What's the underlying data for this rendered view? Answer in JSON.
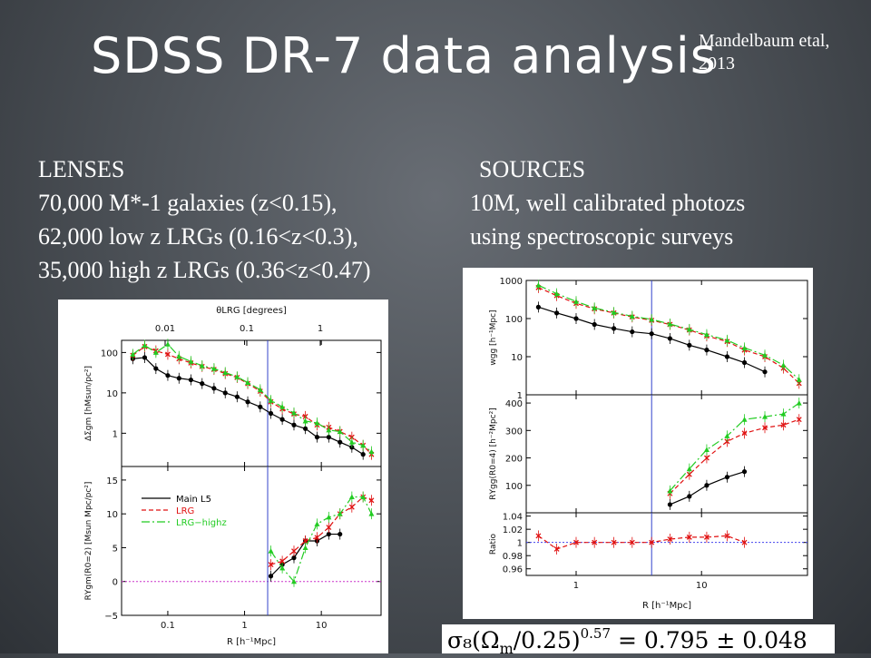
{
  "slide": {
    "title": "SDSS DR-7 data analysis",
    "citation_line1": "Mandelbaum etal,",
    "citation_line2": "2013"
  },
  "lenses": {
    "heading": "LENSES",
    "lines": [
      "70,000 M*-1 galaxies (z<0.15),",
      "62,000 low z LRGs (0.16<z<0.3),",
      "35,000 high z LRGs (0.36<z<0.47)"
    ]
  },
  "sources": {
    "heading": "SOURCES",
    "lines": [
      "10M, well calibrated photozs",
      "using spectroscopic surveys"
    ]
  },
  "formula": {
    "lhs": "σ₈(Ω",
    "sub": "m",
    "mid": "/0.25)",
    "exp": "0.57",
    "rhs": " =  0.795 ± 0.048"
  },
  "colors": {
    "main": "#000000",
    "lrg": "#e01010",
    "lrg_highz": "#22cc22",
    "vertical_line": "#3344cc",
    "zero_line": "#cc33cc",
    "ratio_line": "#4444ee"
  },
  "chart_data": [
    {
      "type": "line",
      "figure": "left",
      "top_axis": {
        "label": "θLRG [degrees]",
        "ticks": [
          "0.01",
          "0.1",
          "1"
        ]
      },
      "xlabel": "R [h⁻¹Mpc]",
      "x_scale": "log",
      "xlim": [
        0.025,
        60
      ],
      "x_ticks": [
        "0.1",
        "1",
        "10"
      ],
      "vertical_marker_x": 2,
      "legend": {
        "position": "middle-left of lower panel",
        "entries": [
          "Main L5",
          "LRG",
          "LRG−highz"
        ]
      },
      "panels": [
        {
          "name": "top",
          "ylabel": "ΔΣgm [hMsun/pc²]",
          "y_scale": "log",
          "ylim": [
            0.15,
            200
          ],
          "y_ticks": [
            "1",
            "10",
            "100"
          ],
          "series": [
            {
              "name": "Main L5",
              "x": [
                0.035,
                0.05,
                0.07,
                0.1,
                0.14,
                0.2,
                0.28,
                0.4,
                0.56,
                0.8,
                1.1,
                1.6,
                2.2,
                3.1,
                4.4,
                6.2,
                8.8,
                12.5,
                17.5,
                25,
                35
              ],
              "y": [
                70,
                75,
                40,
                27,
                23,
                21,
                17,
                13,
                10,
                8,
                6,
                4.5,
                3.1,
                2.2,
                1.6,
                1.3,
                0.8,
                0.8,
                0.6,
                0.45,
                0.3
              ]
            },
            {
              "name": "LRG",
              "x": [
                0.035,
                0.05,
                0.07,
                0.1,
                0.14,
                0.2,
                0.28,
                0.4,
                0.56,
                0.8,
                1.1,
                1.6,
                2.2,
                3.1,
                4.4,
                6.2,
                8.8,
                12.5,
                17.5,
                25,
                35,
                45
              ],
              "y": [
                85,
                140,
                110,
                90,
                70,
                55,
                45,
                38,
                30,
                24,
                17,
                11,
                6,
                4,
                3,
                2.6,
                1.6,
                1.4,
                1.1,
                0.8,
                0.5,
                0.3
              ]
            },
            {
              "name": "LRG−highz",
              "x": [
                0.035,
                0.05,
                0.07,
                0.1,
                0.14,
                0.2,
                0.28,
                0.4,
                0.56,
                0.8,
                1.1,
                1.6,
                2.2,
                3.1,
                4.4,
                6.2,
                8.8,
                12.5,
                17.5,
                25,
                35,
                45
              ],
              "y": [
                90,
                150,
                100,
                160,
                80,
                60,
                47,
                40,
                32,
                25,
                18,
                12,
                6.5,
                4.5,
                3.2,
                2,
                1.8,
                1.2,
                1.1,
                0.6,
                0.5,
                0.35
              ]
            }
          ]
        },
        {
          "name": "bottom",
          "ylabel": "RΥgm(R0=2) [Msun Mpc/pc²]",
          "y_scale": "linear",
          "ylim": [
            -5,
            17
          ],
          "y_ticks": [
            "−5",
            "0",
            "5",
            "10",
            "15"
          ],
          "series": [
            {
              "name": "Main L5",
              "x": [
                2.2,
                3.1,
                4.4,
                6.2,
                8.8,
                12.5,
                17.5
              ],
              "y": [
                0.8,
                2.5,
                3.5,
                6,
                6,
                7,
                7
              ]
            },
            {
              "name": "LRG",
              "x": [
                2.2,
                3.1,
                4.4,
                6.2,
                8.8,
                12.5,
                17.5,
                25,
                35,
                45
              ],
              "y": [
                2.5,
                3,
                4.5,
                6,
                6.5,
                8,
                10,
                11,
                12.5,
                12
              ]
            },
            {
              "name": "LRG−highz",
              "x": [
                2.2,
                3.1,
                4.4,
                6.2,
                8.8,
                12.5,
                17.5,
                25,
                35,
                45
              ],
              "y": [
                4.5,
                2,
                0,
                5,
                8.5,
                9.5,
                10,
                12.5,
                12.5,
                10
              ]
            }
          ]
        }
      ]
    },
    {
      "type": "line",
      "figure": "right",
      "xlabel": "R [h⁻¹Mpc]",
      "x_scale": "log",
      "xlim": [
        0.4,
        70
      ],
      "x_ticks": [
        "1",
        "10"
      ],
      "vertical_marker_x": 4,
      "panels": [
        {
          "name": "top",
          "ylabel": "wgg [h⁻¹Mpc]",
          "y_scale": "log",
          "ylim": [
            1,
            1000
          ],
          "y_ticks": [
            "1",
            "10",
            "100",
            "1000"
          ],
          "series": [
            {
              "name": "Main L5",
              "x": [
                0.5,
                0.7,
                1,
                1.4,
                2,
                2.8,
                4,
                5.6,
                8,
                11,
                16,
                22,
                32
              ],
              "y": [
                200,
                140,
                100,
                70,
                55,
                45,
                40,
                30,
                20,
                15,
                10,
                7,
                4
              ]
            },
            {
              "name": "LRG",
              "x": [
                0.5,
                0.7,
                1,
                1.4,
                2,
                2.8,
                4,
                5.6,
                8,
                11,
                16,
                22,
                32,
                45,
                60
              ],
              "y": [
                650,
                400,
                250,
                180,
                140,
                110,
                90,
                70,
                50,
                35,
                25,
                15,
                10,
                5,
                2
              ]
            },
            {
              "name": "LRG−highz",
              "x": [
                0.5,
                0.7,
                1,
                1.4,
                2,
                2.8,
                4,
                5.6,
                8,
                11,
                16,
                22,
                32,
                45,
                60
              ],
              "y": [
                750,
                450,
                280,
                190,
                145,
                115,
                95,
                72,
                52,
                38,
                27,
                17,
                11,
                6,
                2.5
              ]
            }
          ]
        },
        {
          "name": "middle",
          "ylabel": "RΥgg(R0=4) [h⁻²Mpc²]",
          "y_scale": "linear",
          "ylim": [
            0,
            430
          ],
          "y_ticks": [
            "100",
            "200",
            "300",
            "400"
          ],
          "series": [
            {
              "name": "Main L5",
              "x": [
                5.6,
                8,
                11,
                16,
                22
              ],
              "y": [
                30,
                60,
                100,
                130,
                150
              ]
            },
            {
              "name": "LRG",
              "x": [
                5.6,
                8,
                11,
                16,
                22,
                32,
                45,
                60
              ],
              "y": [
                70,
                140,
                200,
                260,
                290,
                310,
                320,
                340
              ]
            },
            {
              "name": "LRG−highz",
              "x": [
                5.6,
                8,
                11,
                16,
                22,
                32,
                45,
                60
              ],
              "y": [
                80,
                160,
                230,
                280,
                340,
                350,
                360,
                400
              ]
            }
          ]
        },
        {
          "name": "bottom",
          "ylabel": "Ratio",
          "y_scale": "linear",
          "ylim": [
            0.95,
            1.045
          ],
          "y_ticks": [
            "0.96",
            "0.98",
            "1",
            "1.02",
            "1.04"
          ],
          "reference_line": 1,
          "series": [
            {
              "name": "LRG",
              "x": [
                0.5,
                0.7,
                1,
                1.4,
                2,
                2.8,
                4,
                5.6,
                8,
                11,
                16,
                22
              ],
              "y": [
                1.01,
                0.99,
                1,
                1.0,
                1.0,
                1.0,
                1.0,
                1.005,
                1.008,
                1.008,
                1.01,
                1.0
              ]
            }
          ]
        }
      ]
    }
  ]
}
